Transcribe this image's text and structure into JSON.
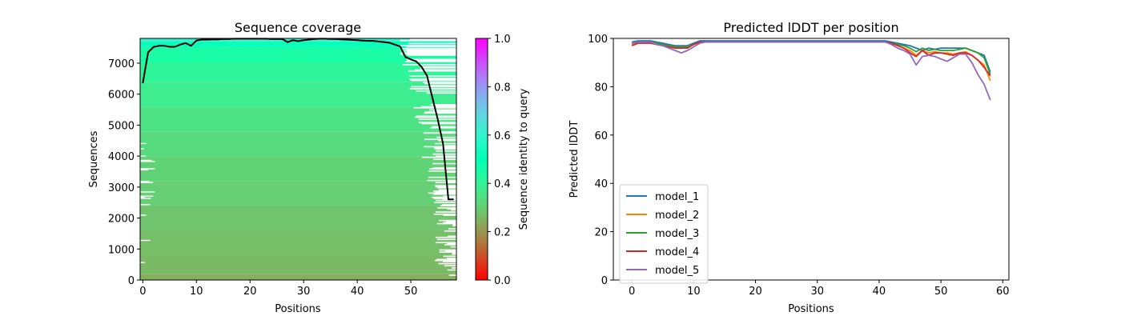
{
  "chart_data": [
    {
      "type": "heatmap",
      "title": "Sequence coverage",
      "xlabel": "Positions",
      "ylabel": "Sequences",
      "xlim": [
        -0.5,
        58.5
      ],
      "ylim": [
        0,
        7800
      ],
      "xticks": [
        0,
        10,
        20,
        30,
        40,
        50
      ],
      "yticks": [
        0,
        1000,
        2000,
        3000,
        4000,
        5000,
        6000,
        7000
      ],
      "colorbar": {
        "label": "Sequence identity to query",
        "colormap": "rainbow_r",
        "range": [
          0.0,
          1.0
        ],
        "ticks": [
          0.0,
          0.2,
          0.4,
          0.6,
          0.8,
          1.0
        ],
        "tick_labels": [
          "0.0",
          "0.2",
          "0.4",
          "0.6",
          "0.8",
          "1.0"
        ]
      },
      "identity_bands": [
        {
          "from": 0,
          "to": 200,
          "identity": 0.24
        },
        {
          "from": 200,
          "to": 800,
          "identity": 0.26
        },
        {
          "from": 800,
          "to": 1600,
          "identity": 0.27
        },
        {
          "from": 1600,
          "to": 2400,
          "identity": 0.28
        },
        {
          "from": 2400,
          "to": 3200,
          "identity": 0.3
        },
        {
          "from": 3200,
          "to": 4000,
          "identity": 0.31
        },
        {
          "from": 4000,
          "to": 4800,
          "identity": 0.33
        },
        {
          "from": 4800,
          "to": 5600,
          "identity": 0.35
        },
        {
          "from": 5600,
          "to": 6400,
          "identity": 0.38
        },
        {
          "from": 6400,
          "to": 7000,
          "identity": 0.41
        },
        {
          "from": 7000,
          "to": 7500,
          "identity": 0.45
        },
        {
          "from": 7500,
          "to": 7700,
          "identity": 0.52
        },
        {
          "from": 7700,
          "to": 7800,
          "identity": 0.6
        }
      ],
      "coverage": {
        "x": [
          0,
          1,
          2,
          3,
          4,
          5,
          6,
          7,
          8,
          9,
          10,
          11,
          12,
          13,
          14,
          15,
          16,
          17,
          18,
          19,
          20,
          21,
          22,
          23,
          24,
          25,
          26,
          27,
          28,
          29,
          30,
          31,
          32,
          33,
          34,
          35,
          36,
          37,
          38,
          39,
          40,
          41,
          42,
          43,
          44,
          45,
          46,
          47,
          48,
          49,
          50,
          51,
          52,
          53,
          54,
          55,
          56,
          57,
          58
        ],
        "y": [
          6350,
          7350,
          7520,
          7560,
          7560,
          7530,
          7530,
          7600,
          7650,
          7560,
          7730,
          7760,
          7760,
          7770,
          7770,
          7780,
          7780,
          7790,
          7790,
          7790,
          7790,
          7790,
          7790,
          7790,
          7780,
          7780,
          7780,
          7680,
          7740,
          7710,
          7740,
          7760,
          7780,
          7790,
          7790,
          7780,
          7780,
          7770,
          7760,
          7750,
          7740,
          7730,
          7720,
          7720,
          7700,
          7680,
          7660,
          7600,
          7540,
          7200,
          7120,
          7060,
          6880,
          6600,
          5900,
          5200,
          4400,
          2600,
          2600
        ]
      }
    },
    {
      "type": "line",
      "title": "Predicted lDDT per position",
      "xlabel": "Positions",
      "ylabel": "Predicted lDDT",
      "xlim": [
        -3,
        61
      ],
      "ylim": [
        0,
        100
      ],
      "xticks": [
        0,
        10,
        20,
        30,
        40,
        50,
        60
      ],
      "yticks": [
        0,
        20,
        40,
        60,
        80,
        100
      ],
      "legend_position": "lower-left",
      "x": [
        0,
        1,
        2,
        3,
        4,
        5,
        6,
        7,
        8,
        9,
        10,
        11,
        12,
        13,
        14,
        15,
        16,
        17,
        18,
        19,
        20,
        21,
        22,
        23,
        24,
        25,
        26,
        27,
        28,
        29,
        30,
        31,
        32,
        33,
        34,
        35,
        36,
        37,
        38,
        39,
        40,
        41,
        42,
        43,
        44,
        45,
        46,
        47,
        48,
        49,
        50,
        51,
        52,
        53,
        54,
        55,
        56,
        57,
        58
      ],
      "series": [
        {
          "name": "model_1",
          "color": "#1f77b4",
          "values": [
            98.5,
            99,
            99,
            99,
            98.5,
            98,
            97.5,
            97,
            97,
            97,
            98,
            99,
            99,
            99,
            99,
            99,
            99,
            99,
            99,
            99,
            99,
            99,
            99,
            99,
            99,
            99,
            99,
            99,
            99,
            99,
            99,
            99,
            99,
            99,
            99,
            99,
            99,
            99,
            99,
            99,
            99,
            99,
            98.5,
            98,
            97.5,
            97,
            96,
            95,
            96,
            95.5,
            96,
            96,
            96,
            96,
            96,
            95,
            94,
            93,
            86
          ]
        },
        {
          "name": "model_2",
          "color": "#ff7f0e",
          "values": [
            97.5,
            98.5,
            98.5,
            98.5,
            98,
            97.5,
            97,
            96.5,
            96.5,
            96.5,
            97.5,
            98.5,
            98.5,
            98.5,
            98.5,
            98.5,
            98.5,
            98.5,
            98.5,
            98.5,
            98.5,
            98.5,
            98.5,
            98.5,
            98.5,
            98.5,
            98.5,
            98.5,
            98.5,
            98.5,
            98.5,
            98.5,
            98.5,
            98.5,
            98.5,
            98.5,
            98.5,
            98.5,
            98.5,
            98.5,
            98.5,
            98.5,
            98,
            97,
            96,
            95,
            93,
            95,
            94,
            94.5,
            94,
            94,
            93.5,
            94,
            94.5,
            93,
            91,
            89,
            82.5
          ]
        },
        {
          "name": "model_3",
          "color": "#2ca02c",
          "values": [
            98,
            98.5,
            98.5,
            98.5,
            98,
            97.5,
            97,
            96.5,
            96.5,
            96.5,
            97.5,
            98.5,
            98.5,
            98.5,
            98.5,
            98.5,
            98.5,
            98.5,
            98.5,
            98.5,
            98.5,
            98.5,
            98.5,
            98.5,
            98.5,
            98.5,
            98.5,
            98.5,
            98.5,
            98.5,
            98.5,
            98.5,
            98.5,
            98.5,
            98.5,
            98.5,
            98.5,
            98.5,
            98.5,
            98.5,
            98.5,
            98.5,
            98,
            97.5,
            97,
            96,
            94.5,
            96,
            95,
            95.5,
            95,
            95,
            95,
            95.5,
            96,
            95,
            94,
            92,
            85
          ]
        },
        {
          "name": "model_4",
          "color": "#d62728",
          "values": [
            97,
            98,
            98,
            98,
            97.5,
            97,
            96.5,
            96,
            96,
            96,
            97.5,
            98.5,
            98.5,
            98.5,
            98.5,
            98.5,
            98.5,
            98.5,
            98.5,
            98.5,
            98.5,
            98.5,
            98.5,
            98.5,
            98.5,
            98.5,
            98.5,
            98.5,
            98.5,
            98.5,
            98.5,
            98.5,
            98.5,
            98.5,
            98.5,
            98.5,
            98.5,
            98.5,
            98.5,
            98.5,
            98.5,
            98.5,
            98,
            97,
            96,
            94,
            92.5,
            95,
            93,
            94,
            94,
            93.5,
            93,
            94,
            94,
            93,
            91,
            88,
            84.5
          ]
        },
        {
          "name": "model_5",
          "color": "#9467bd",
          "values": [
            98,
            98.5,
            98.5,
            98.5,
            97.5,
            97,
            96,
            95,
            94,
            95,
            96.5,
            98,
            98.5,
            98.5,
            98.5,
            98.5,
            98.5,
            98.5,
            98.5,
            98.5,
            98.5,
            98.5,
            98.5,
            98.5,
            98.5,
            98.5,
            98.5,
            98.5,
            98.5,
            98.5,
            98.5,
            98.5,
            98.5,
            98.5,
            98.5,
            98.5,
            98.5,
            98.5,
            98.5,
            98.5,
            98.5,
            98.5,
            97.5,
            96,
            95,
            93.5,
            89,
            92.5,
            93,
            92.5,
            91.5,
            90.5,
            92,
            93.5,
            93.5,
            90,
            85,
            81,
            74.5
          ]
        }
      ]
    }
  ]
}
